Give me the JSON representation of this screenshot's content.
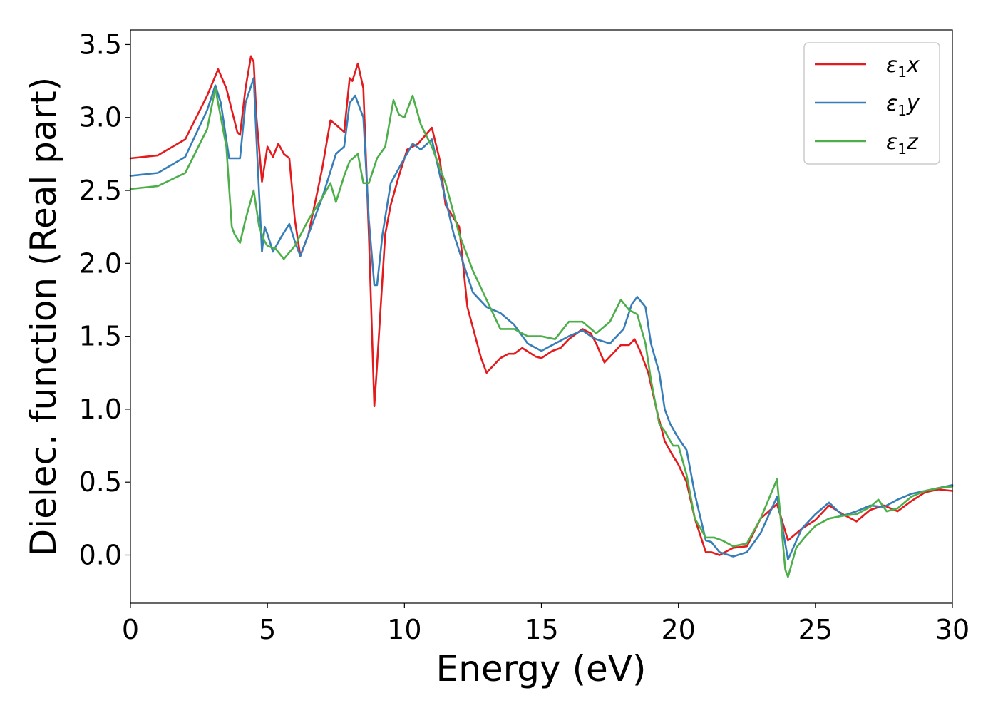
{
  "chart_data": {
    "type": "line",
    "title": "",
    "xlabel": "Energy (eV)",
    "ylabel": "Dielec. function (Real part)",
    "xlim": [
      0,
      30
    ],
    "ylim": [
      -0.33,
      3.6
    ],
    "xticks": [
      0,
      5,
      10,
      15,
      20,
      25,
      30
    ],
    "xtick_labels": [
      "0",
      "5",
      "10",
      "15",
      "20",
      "25",
      "30"
    ],
    "yticks": [
      0.0,
      0.5,
      1.0,
      1.5,
      2.0,
      2.5,
      3.0,
      3.5
    ],
    "ytick_labels": [
      "0.0",
      "0.5",
      "1.0",
      "1.5",
      "2.0",
      "2.5",
      "3.0",
      "3.5"
    ],
    "grid": false,
    "legend_position": "top-right",
    "series": [
      {
        "name": "ε1x",
        "name_base": "ε",
        "name_sub": "1",
        "name_var": "x",
        "color": "#e41a1c",
        "x": [
          0,
          1,
          2,
          2.8,
          3.2,
          3.5,
          3.9,
          4.0,
          4.2,
          4.4,
          4.5,
          4.6,
          4.8,
          5.0,
          5.2,
          5.4,
          5.6,
          5.8,
          6.0,
          6.2,
          6.5,
          7.0,
          7.3,
          7.5,
          7.8,
          8.0,
          8.1,
          8.3,
          8.5,
          8.7,
          8.9,
          9.0,
          9.3,
          9.5,
          9.8,
          10.1,
          10.5,
          11.0,
          11.3,
          11.5,
          12.0,
          12.3,
          12.8,
          13.0,
          13.5,
          13.8,
          14.0,
          14.3,
          14.8,
          15.0,
          15.4,
          15.7,
          16.0,
          16.5,
          16.8,
          17.0,
          17.3,
          17.6,
          17.9,
          18.2,
          18.4,
          18.6,
          18.9,
          19.2,
          19.5,
          19.8,
          20.0,
          20.3,
          20.6,
          21.0,
          21.2,
          21.5,
          22.0,
          22.5,
          23.0,
          23.6,
          24.0,
          24.5,
          25.0,
          25.5,
          26.0,
          26.5,
          27.0,
          27.5,
          28.0,
          28.5,
          29.0,
          29.5,
          30.0
        ],
        "y": [
          2.72,
          2.74,
          2.85,
          3.15,
          3.33,
          3.2,
          2.9,
          2.88,
          3.2,
          3.42,
          3.38,
          3.0,
          2.56,
          2.8,
          2.73,
          2.82,
          2.75,
          2.72,
          2.3,
          2.05,
          2.2,
          2.65,
          2.98,
          2.95,
          2.9,
          3.27,
          3.25,
          3.37,
          3.2,
          2.2,
          1.02,
          1.3,
          2.2,
          2.4,
          2.6,
          2.78,
          2.82,
          2.93,
          2.7,
          2.4,
          2.25,
          1.7,
          1.35,
          1.25,
          1.35,
          1.38,
          1.38,
          1.42,
          1.36,
          1.35,
          1.4,
          1.42,
          1.48,
          1.55,
          1.52,
          1.45,
          1.32,
          1.38,
          1.44,
          1.44,
          1.48,
          1.4,
          1.25,
          1.0,
          0.78,
          0.68,
          0.62,
          0.5,
          0.25,
          0.02,
          0.02,
          0.0,
          0.05,
          0.06,
          0.25,
          0.35,
          0.1,
          0.18,
          0.24,
          0.34,
          0.28,
          0.23,
          0.31,
          0.34,
          0.3,
          0.37,
          0.43,
          0.45,
          0.44
        ]
      },
      {
        "name": "ε1y",
        "name_base": "ε",
        "name_sub": "1",
        "name_var": "y",
        "color": "#377eb8",
        "x": [
          0,
          1,
          2,
          2.8,
          3.1,
          3.3,
          3.6,
          3.8,
          4.0,
          4.2,
          4.5,
          4.6,
          4.8,
          4.9,
          5.0,
          5.2,
          5.5,
          5.8,
          6.0,
          6.2,
          6.5,
          7.0,
          7.5,
          7.8,
          8.0,
          8.2,
          8.5,
          8.7,
          8.9,
          9.0,
          9.2,
          9.5,
          10.0,
          10.3,
          10.6,
          11.0,
          11.3,
          11.8,
          12.5,
          13.0,
          13.5,
          14.0,
          14.5,
          15.0,
          15.5,
          16.0,
          16.5,
          16.8,
          17.0,
          17.5,
          18.0,
          18.3,
          18.5,
          18.8,
          19.0,
          19.3,
          19.5,
          19.7,
          20.0,
          20.3,
          20.6,
          21.0,
          21.2,
          21.5,
          22.0,
          22.5,
          23.0,
          23.6,
          24.0,
          24.5,
          25.0,
          25.5,
          26.0,
          26.5,
          27.0,
          27.5,
          28.0,
          28.5,
          29.0,
          29.5,
          30.0
        ],
        "y": [
          2.6,
          2.62,
          2.73,
          3.05,
          3.22,
          3.1,
          2.72,
          2.72,
          2.72,
          3.1,
          3.27,
          2.85,
          2.08,
          2.25,
          2.2,
          2.08,
          2.18,
          2.27,
          2.15,
          2.05,
          2.2,
          2.45,
          2.75,
          2.8,
          3.1,
          3.15,
          3.0,
          2.3,
          1.85,
          1.85,
          2.2,
          2.55,
          2.72,
          2.82,
          2.78,
          2.85,
          2.6,
          2.2,
          1.8,
          1.7,
          1.66,
          1.58,
          1.45,
          1.4,
          1.45,
          1.5,
          1.54,
          1.5,
          1.48,
          1.45,
          1.55,
          1.72,
          1.77,
          1.7,
          1.45,
          1.25,
          1.0,
          0.9,
          0.8,
          0.72,
          0.42,
          0.1,
          0.09,
          0.02,
          -0.01,
          0.02,
          0.15,
          0.4,
          -0.03,
          0.18,
          0.28,
          0.36,
          0.27,
          0.3,
          0.34,
          0.33,
          0.38,
          0.42,
          0.44,
          0.46,
          0.48
        ]
      },
      {
        "name": "ε1z",
        "name_base": "ε",
        "name_sub": "1",
        "name_var": "z",
        "color": "#4daf4a",
        "x": [
          0,
          1,
          2,
          2.8,
          3.1,
          3.3,
          3.5,
          3.7,
          3.8,
          4.0,
          4.2,
          4.5,
          4.7,
          4.9,
          5.0,
          5.3,
          5.6,
          6.0,
          6.5,
          7.0,
          7.3,
          7.5,
          7.8,
          8.0,
          8.3,
          8.5,
          8.7,
          9.0,
          9.3,
          9.6,
          9.8,
          10.0,
          10.3,
          10.6,
          11.0,
          11.5,
          12.0,
          12.5,
          13.0,
          13.5,
          14.0,
          14.5,
          15.0,
          15.5,
          16.0,
          16.5,
          17.0,
          17.5,
          17.9,
          18.2,
          18.5,
          18.8,
          19.0,
          19.3,
          19.5,
          19.8,
          20.0,
          20.3,
          20.6,
          21.0,
          21.3,
          21.6,
          22.0,
          22.5,
          23.0,
          23.6,
          23.9,
          24.0,
          24.3,
          24.6,
          25.0,
          25.5,
          26.0,
          26.5,
          27.0,
          27.3,
          27.6,
          28.0,
          28.5,
          29.0,
          29.5,
          30.0
        ],
        "y": [
          2.51,
          2.53,
          2.62,
          2.92,
          3.2,
          3.0,
          2.8,
          2.25,
          2.2,
          2.14,
          2.3,
          2.5,
          2.25,
          2.15,
          2.12,
          2.1,
          2.03,
          2.12,
          2.3,
          2.45,
          2.55,
          2.42,
          2.6,
          2.7,
          2.75,
          2.55,
          2.55,
          2.72,
          2.8,
          3.12,
          3.02,
          3.0,
          3.15,
          2.95,
          2.8,
          2.55,
          2.2,
          1.95,
          1.75,
          1.55,
          1.55,
          1.5,
          1.5,
          1.48,
          1.6,
          1.6,
          1.52,
          1.6,
          1.75,
          1.68,
          1.65,
          1.45,
          1.2,
          0.9,
          0.85,
          0.75,
          0.75,
          0.55,
          0.25,
          0.12,
          0.12,
          0.1,
          0.06,
          0.08,
          0.25,
          0.52,
          -0.1,
          -0.15,
          0.05,
          0.12,
          0.2,
          0.25,
          0.27,
          0.28,
          0.33,
          0.38,
          0.3,
          0.32,
          0.4,
          0.44,
          0.46,
          0.47
        ]
      }
    ]
  }
}
